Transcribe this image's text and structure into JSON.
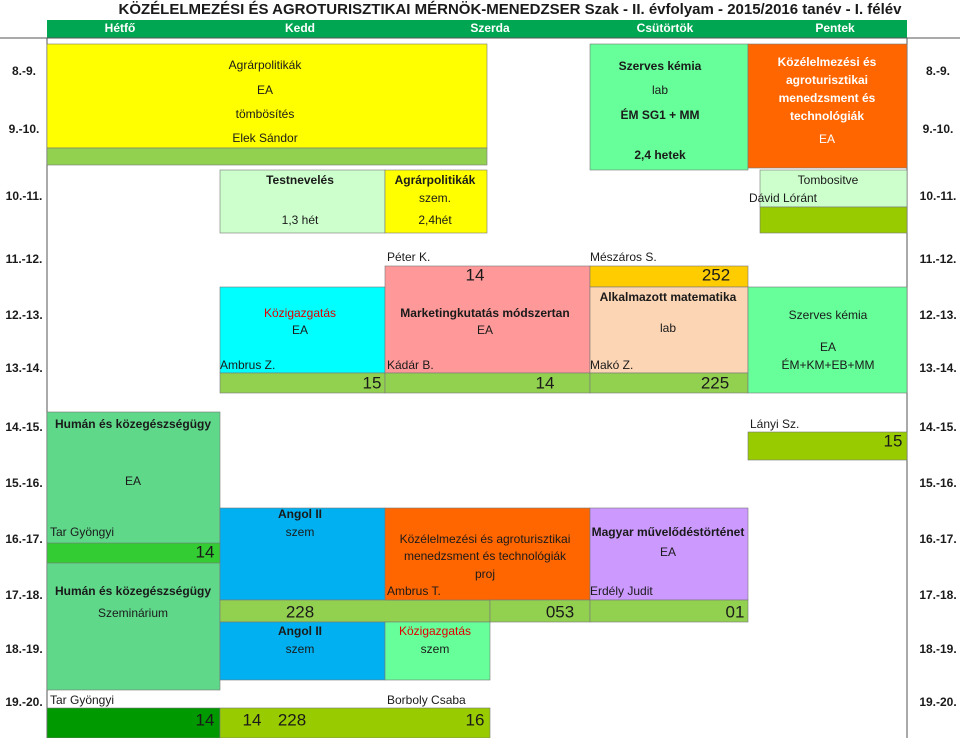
{
  "title": "KÖZÉLELMEZÉSI ÉS AGROTURISZTIKAI MÉRNÖK-MENEDZSER Szak - II. évfolyam - 2015/2016 tanév - I. félév",
  "days": [
    "Hétfő",
    "Kedd",
    "Szerda",
    "Csütörtök",
    "Pentek"
  ],
  "time_slots": [
    "8.-9.",
    "9.-10.",
    "10.-11.",
    "11.-12.",
    "12.-13.",
    "13.-14.",
    "14.-15.",
    "15.-16.",
    "16.-17.",
    "17.-18.",
    "18.-19.",
    "19.-20."
  ],
  "blocks": [
    {
      "lines": [
        "Agrárpolitikák",
        "EA",
        "tömbösítés",
        "Elek Sándor"
      ]
    },
    {
      "lines": [
        "Szerves kémia",
        "lab",
        "ÉM SG1 + MM",
        "2,4 hetek"
      ]
    },
    {
      "lines": [
        "Közélelmezési és",
        "agroturisztikai",
        "menedzsment és",
        "technológiák",
        "EA"
      ]
    },
    {
      "lines": [
        "Testnevelés",
        "1,3 hét"
      ]
    },
    {
      "lines": [
        "Agrárpolitikák",
        "szem.",
        "2,4hét"
      ]
    },
    {
      "lines": [
        "Tombositve",
        "Dávid Lóránt"
      ]
    },
    {
      "lines": [
        "Közigazgatás",
        "EA",
        "Ambrus Z.",
        "15"
      ]
    },
    {
      "lines": [
        "Péter K.",
        "14",
        "Marketingkutatás módszertan",
        "EA",
        "Kádár B.",
        "14"
      ]
    },
    {
      "lines": [
        "Mészáros S.",
        "252",
        "Alkalmazott matematika",
        "lab",
        "Makó Z.",
        "225"
      ]
    },
    {
      "lines": [
        "Szerves kémia",
        "EA",
        "ÉM+KM+EB+MM"
      ]
    },
    {
      "lines": [
        "Humán és közegészségügy",
        "EA",
        "Tar Gyöngyi",
        "14",
        "Humán és közegészségügy",
        "Szeminárium"
      ]
    },
    {
      "lines": [
        "Lányi Sz.",
        "15"
      ]
    },
    {
      "lines": [
        "Angol II",
        "szem",
        "228",
        "Angol II",
        "szem"
      ]
    },
    {
      "lines": [
        "Közélelmezési és agroturisztikai",
        "menedzsment és technológiák",
        "proj",
        "Ambrus T.",
        "053"
      ]
    },
    {
      "lines": [
        "Magyar művelődéstörténet",
        "EA",
        "Erdély Judit",
        "01"
      ]
    },
    {
      "lines": [
        "Közigazgatás",
        "szem"
      ]
    },
    {
      "lines": [
        "Tar Gyöngyi",
        "14",
        "14",
        "228",
        "Borboly Csaba",
        "16"
      ]
    }
  ]
}
